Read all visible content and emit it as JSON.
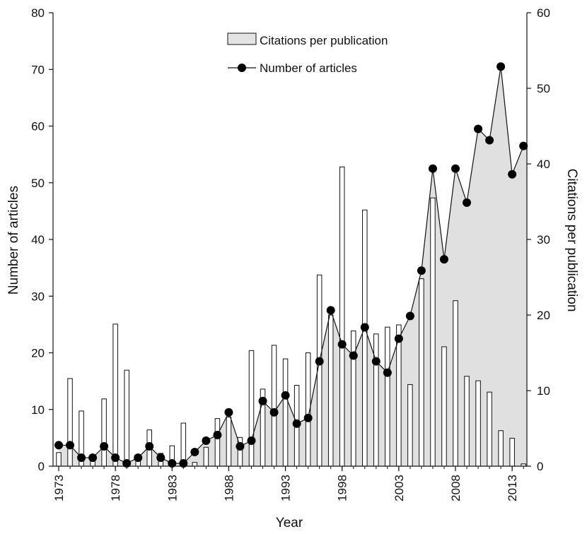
{
  "chart_data": {
    "type": "bar",
    "x_label": "Year",
    "y_left_label": "Number of articles",
    "y_right_label": "Citations per publication",
    "y_left_range": [
      0,
      80
    ],
    "y_right_range": [
      0,
      60
    ],
    "y_left_ticks": [
      "0",
      "10",
      "20",
      "30",
      "40",
      "50",
      "60",
      "70",
      "80"
    ],
    "y_right_ticks": [
      "0",
      "10",
      "20",
      "30",
      "40",
      "50",
      "60"
    ],
    "x_ticks": [
      "1973",
      "1978",
      "1983",
      "1988",
      "1993",
      "1998",
      "2003",
      "2008",
      "2013"
    ],
    "legend": {
      "placement": "top-center",
      "bars_label": "Citations per publication",
      "line_label": "Number of articles"
    },
    "years": [
      1973,
      1974,
      1975,
      1976,
      1977,
      1978,
      1979,
      1980,
      1981,
      1982,
      1983,
      1984,
      1985,
      1986,
      1987,
      1988,
      1989,
      1990,
      1991,
      1992,
      1993,
      1994,
      1995,
      1996,
      1997,
      1998,
      1999,
      2000,
      2001,
      2002,
      2003,
      2004,
      2005,
      2006,
      2007,
      2008,
      2009,
      2010,
      2011,
      2012,
      2013,
      2014
    ],
    "series": [
      {
        "name": "Citations per publication",
        "axis": "right",
        "kind": "bar",
        "values": [
          1.8,
          11.6,
          7.3,
          1.0,
          8.9,
          18.8,
          12.7,
          1.5,
          4.8,
          1.7,
          2.7,
          5.7,
          0.5,
          2.5,
          6.3,
          6.5,
          3.8,
          15.3,
          10.2,
          16.0,
          14.2,
          10.7,
          15.0,
          25.3,
          20.0,
          39.6,
          17.9,
          33.9,
          17.5,
          18.4,
          18.7,
          10.8,
          24.8,
          35.5,
          15.8,
          21.9,
          11.9,
          11.3,
          9.8,
          4.7,
          3.7,
          0.3
        ]
      },
      {
        "name": "Number of articles",
        "axis": "left",
        "kind": "line-area",
        "values": [
          3.7,
          3.7,
          1.5,
          1.5,
          3.5,
          1.5,
          0.5,
          1.5,
          3.5,
          1.5,
          0.5,
          0.5,
          2.5,
          4.5,
          5.5,
          9.5,
          3.5,
          4.5,
          11.5,
          9.5,
          12.5,
          7.5,
          8.5,
          18.5,
          27.5,
          21.5,
          19.5,
          24.5,
          18.5,
          16.5,
          22.5,
          26.5,
          34.5,
          52.5,
          36.5,
          52.5,
          46.5,
          59.5,
          57.5,
          70.5,
          51.5,
          56.5
        ]
      }
    ]
  }
}
